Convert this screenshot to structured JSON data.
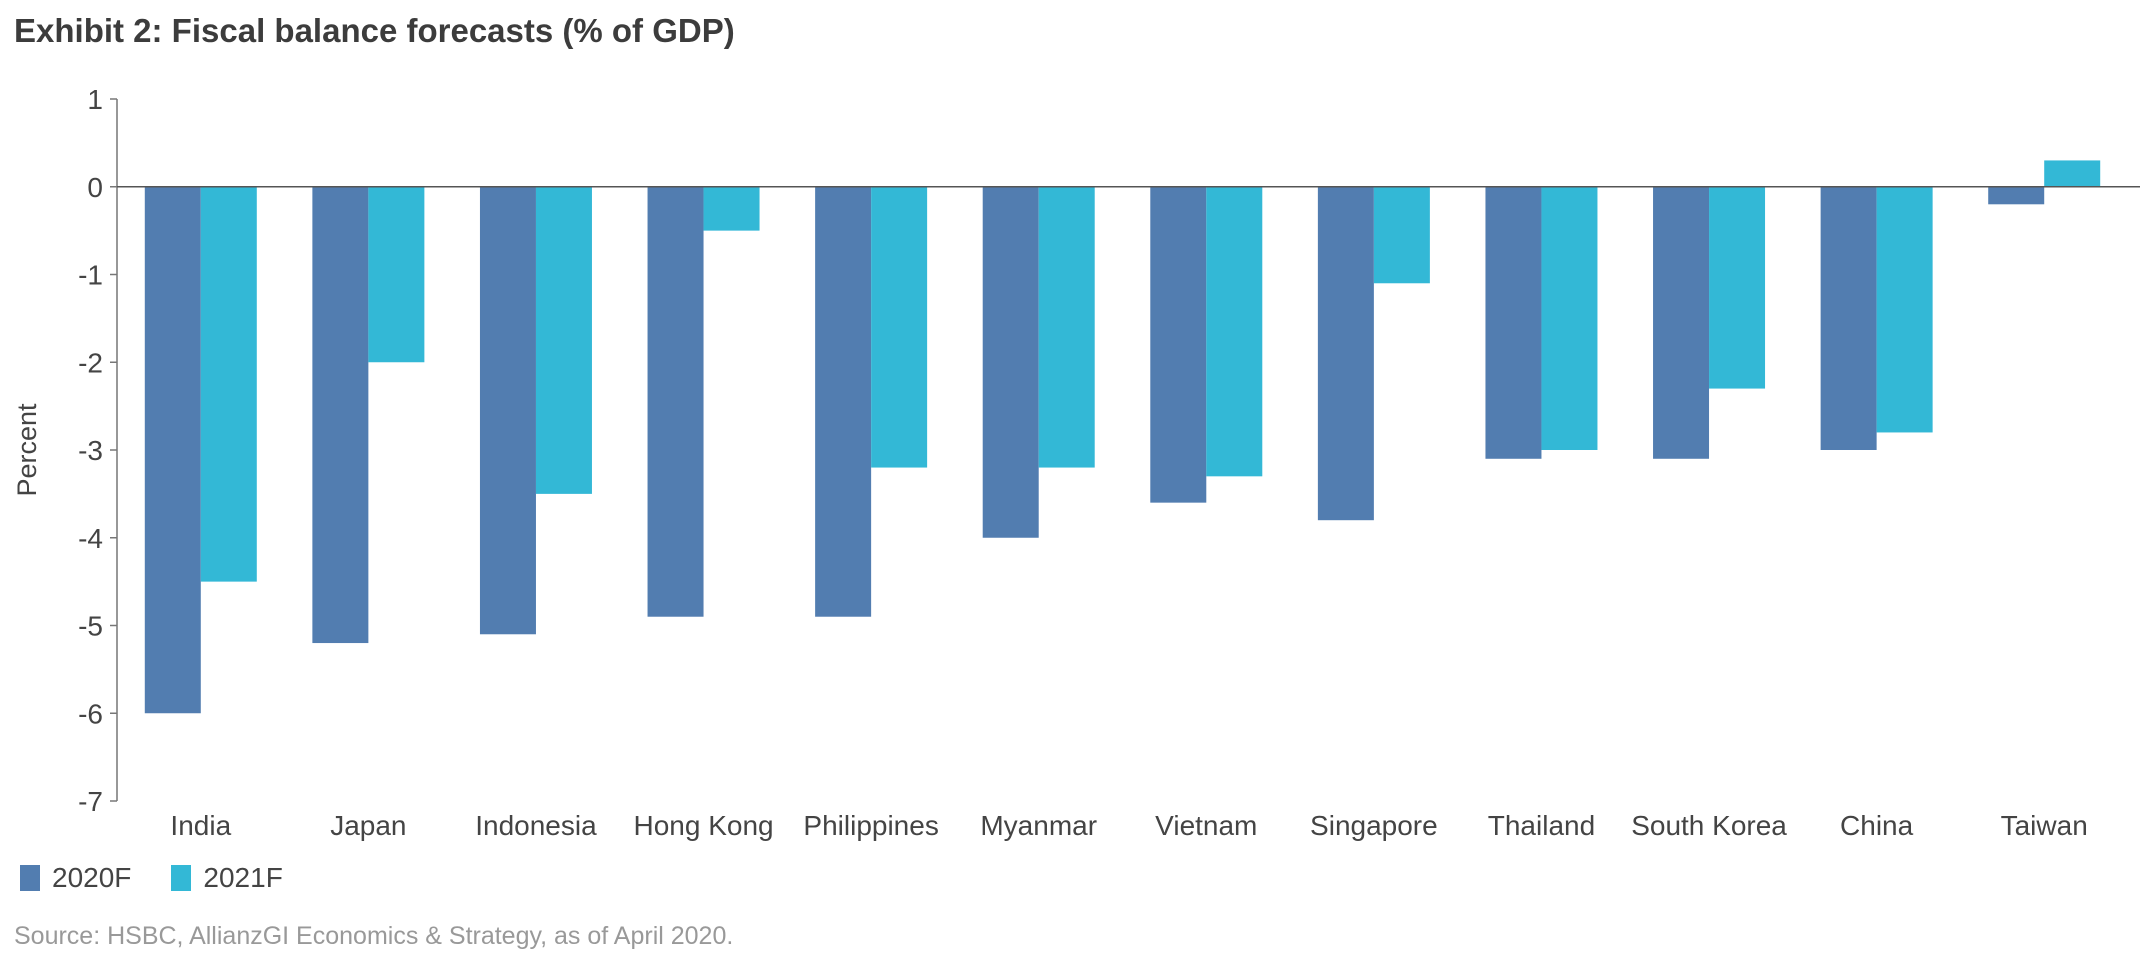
{
  "chart_data": {
    "type": "bar",
    "title": "Exhibit 2: Fiscal balance forecasts (% of GDP)",
    "ylabel": "Percent",
    "xlabel": "",
    "ylim": [
      -7,
      1
    ],
    "yticks": [
      1,
      0,
      -1,
      -2,
      -3,
      -4,
      -5,
      -6,
      -7
    ],
    "grid": false,
    "legend_position": "bottom-left",
    "categories": [
      "India",
      "Japan",
      "Indonesia",
      "Hong Kong",
      "Philippines",
      "Myanmar",
      "Vietnam",
      "Singapore",
      "Thailand",
      "South Korea",
      "China",
      "Taiwan"
    ],
    "series": [
      {
        "name": "2020F",
        "color": "#527db0",
        "values": [
          -6.0,
          -5.2,
          -5.1,
          -4.9,
          -4.9,
          -4.0,
          -3.6,
          -3.8,
          -3.1,
          -3.1,
          -3.0,
          -0.2
        ]
      },
      {
        "name": "2021F",
        "color": "#33b8d6",
        "values": [
          -4.5,
          -2.0,
          -3.5,
          -0.5,
          -3.2,
          -3.2,
          -3.3,
          -1.1,
          -3.0,
          -2.3,
          -2.8,
          0.3
        ]
      }
    ],
    "source": "Source: HSBC, AllianzGI Economics & Strategy, as of April 2020."
  }
}
